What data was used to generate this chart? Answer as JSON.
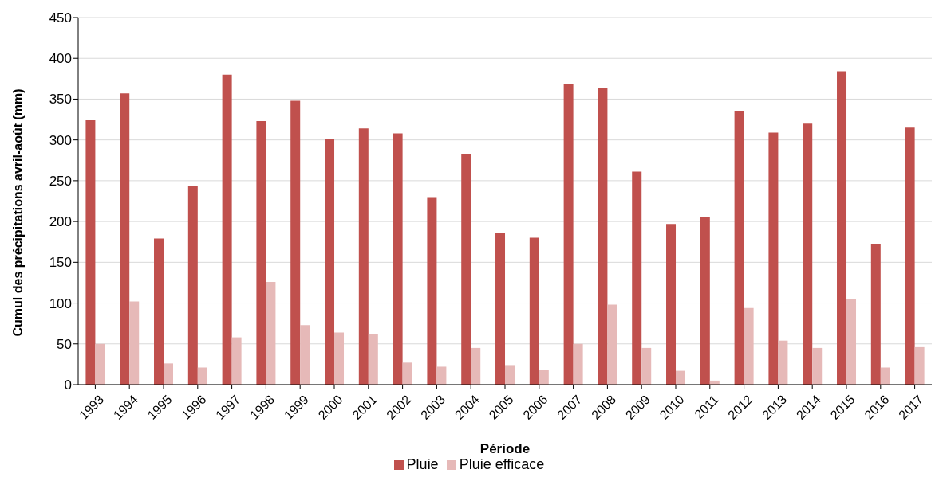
{
  "chart_data": {
    "type": "bar",
    "xlabel": "Période",
    "ylabel": "Cumul des précipitations avril-août (mm)",
    "categories": [
      "1993",
      "1994",
      "1995",
      "1996",
      "1997",
      "1998",
      "1999",
      "2000",
      "2001",
      "2002",
      "2003",
      "2004",
      "2005",
      "2006",
      "2007",
      "2008",
      "2009",
      "2010",
      "2011",
      "2012",
      "2013",
      "2014",
      "2015",
      "2016",
      "2017"
    ],
    "series": [
      {
        "name": "Pluie",
        "color": "#c0504d",
        "values": [
          324,
          357,
          179,
          243,
          380,
          323,
          348,
          301,
          314,
          308,
          229,
          282,
          186,
          180,
          368,
          364,
          261,
          197,
          205,
          335,
          309,
          320,
          384,
          172,
          315
        ]
      },
      {
        "name": "Pluie efficace",
        "color": "#e6b9b8",
        "values": [
          50,
          102,
          26,
          21,
          58,
          126,
          73,
          64,
          62,
          27,
          22,
          45,
          24,
          18,
          50,
          98,
          45,
          17,
          5,
          94,
          54,
          45,
          105,
          21,
          46
        ]
      }
    ],
    "ylim": [
      0,
      450
    ],
    "yticks": [
      0,
      50,
      100,
      150,
      200,
      250,
      300,
      350,
      400,
      450
    ],
    "grid": "y",
    "legend": "bottom"
  }
}
